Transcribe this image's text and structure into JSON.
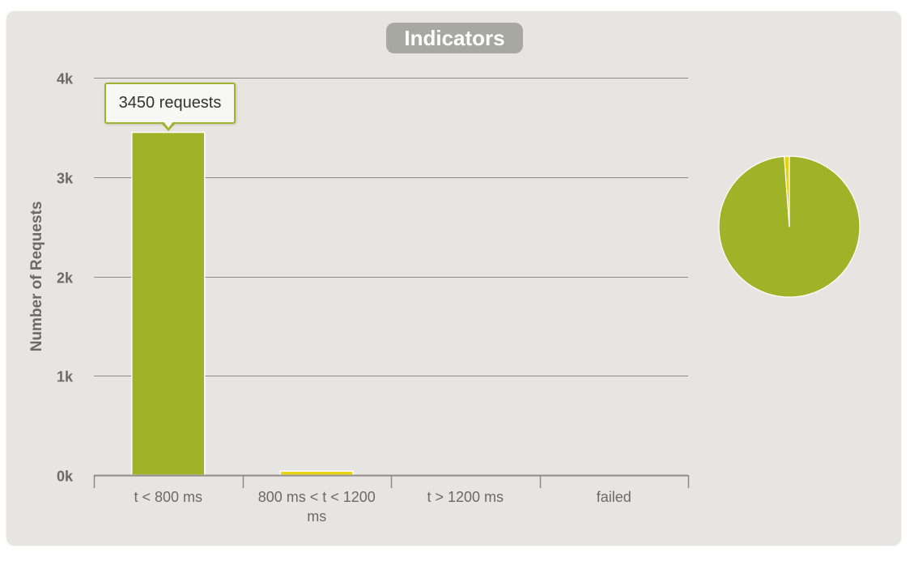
{
  "title": "Indicators",
  "tooltip": "3450 requests",
  "colors": {
    "ok": "#a0b228",
    "warn": "#e8d20c",
    "ko": "#d9534f",
    "grid": "#8c8c87",
    "axis_text": "#6a6a66",
    "panel": "#e6e5e1"
  },
  "chart_data": [
    {
      "type": "bar",
      "title": "",
      "ylabel": "Number of Requests",
      "xlabel": "",
      "categories": [
        "t < 800 ms",
        "800 ms < t < 1200 ms",
        "t > 1200 ms",
        "failed"
      ],
      "category_lines": [
        [
          "t < 800 ms"
        ],
        [
          "800 ms < t < 1200",
          "ms"
        ],
        [
          "t > 1200 ms"
        ],
        [
          "failed"
        ]
      ],
      "values": [
        3450,
        40,
        0,
        0
      ],
      "yticks": [
        "0k",
        "1k",
        "2k",
        "3k",
        "4k"
      ],
      "ylim": [
        0,
        4000
      ],
      "grid": true
    },
    {
      "type": "pie",
      "categories": [
        "t < 800 ms",
        "800 ms < t < 1200 ms",
        "t > 1200 ms",
        "failed"
      ],
      "values": [
        3450,
        40,
        0,
        0
      ]
    }
  ]
}
